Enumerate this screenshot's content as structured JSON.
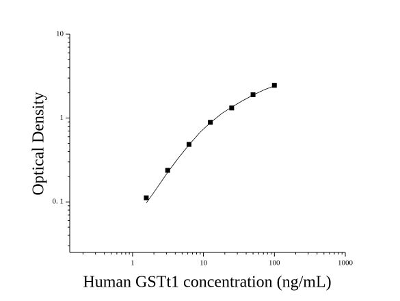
{
  "chart_data": {
    "type": "scatter",
    "x_label": "Human GSTt1 concentration (ng/mL)",
    "y_label": "Optical Density",
    "x": [
      1.56,
      3.125,
      6.25,
      12.5,
      25,
      50,
      100
    ],
    "series": [
      {
        "color": "#000000",
        "marker": "square",
        "values": [
          0.112,
          0.238,
          0.485,
          0.89,
          1.32,
          1.9,
          2.46
        ]
      }
    ],
    "fit": {
      "color": "#000000",
      "x": [
        1.56,
        2,
        3.125,
        4.5,
        6.25,
        9,
        12.5,
        18,
        25,
        35,
        50,
        70,
        100
      ],
      "values": [
        0.097,
        0.13,
        0.225,
        0.34,
        0.48,
        0.68,
        0.88,
        1.13,
        1.35,
        1.6,
        1.88,
        2.15,
        2.42
      ]
    },
    "xscale": "log",
    "yscale": "log",
    "xlim": [
      0.13,
      1000
    ],
    "ylim": [
      0.025,
      10
    ],
    "xticks": [
      1,
      10,
      100,
      1000
    ],
    "yticks": [
      {
        "value": 0.1,
        "label": "0. 1"
      },
      1,
      10
    ],
    "xminorticks": [
      0.2,
      0.3,
      0.4,
      0.5,
      0.6,
      0.7,
      0.8,
      0.9,
      2,
      3,
      4,
      5,
      6,
      7,
      8,
      9,
      20,
      30,
      40,
      50,
      60,
      70,
      80,
      90,
      200,
      300,
      400,
      500,
      600,
      700,
      800,
      900
    ],
    "yminorticks": [
      0.03,
      0.04,
      0.05,
      0.06,
      0.07,
      0.08,
      0.09,
      0.2,
      0.3,
      0.4,
      0.5,
      0.6,
      0.7,
      0.8,
      0.9,
      2,
      3,
      4,
      5,
      6,
      7,
      8,
      9
    ],
    "grid": false
  }
}
